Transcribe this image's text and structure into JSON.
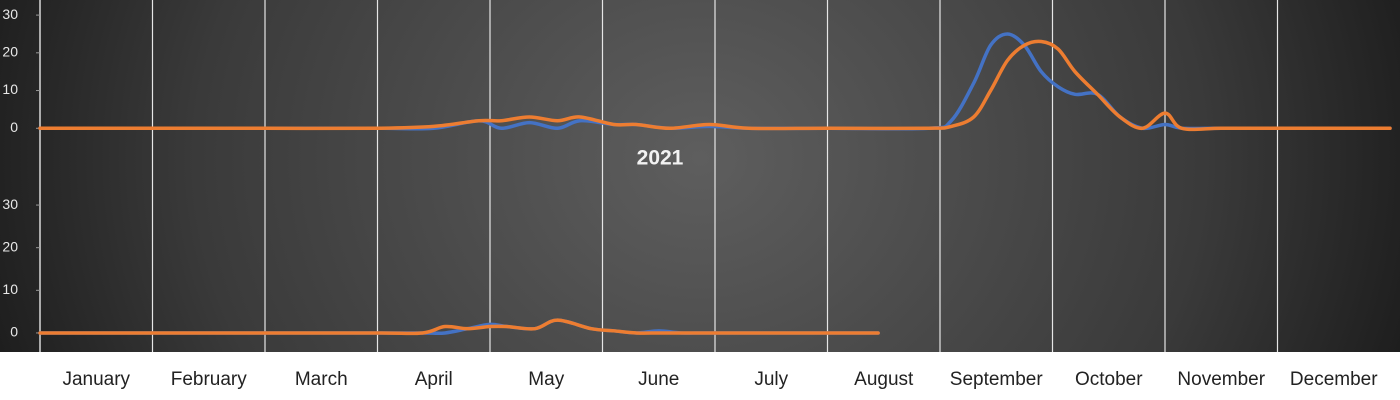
{
  "chart_data": [
    {
      "type": "line",
      "x": [
        0,
        1,
        2,
        3,
        3.5,
        3.9,
        4.1,
        4.35,
        4.6,
        4.8,
        5.1,
        5.3,
        5.6,
        5.95,
        6.3,
        7,
        7.9,
        8.1,
        8.3,
        8.45,
        8.6,
        8.75,
        8.9,
        9.05,
        9.2,
        9.4,
        9.6,
        9.8,
        10,
        10.15,
        10.5,
        11,
        12
      ],
      "xlim": [
        0,
        12
      ],
      "ylim": [
        -10,
        34
      ],
      "yticks": [
        0,
        10,
        20,
        30
      ],
      "grid": true,
      "series": [
        {
          "color": "#4472c4",
          "values": [
            0,
            0,
            0,
            0,
            0,
            2,
            0,
            1.5,
            0,
            2,
            1,
            1,
            0,
            0.5,
            0,
            0,
            0,
            2,
            12,
            22,
            25,
            22,
            15,
            11,
            9,
            9,
            3,
            0,
            1,
            0,
            0,
            0,
            0
          ]
        },
        {
          "color": "#ed7d31",
          "values": [
            0,
            0,
            0,
            0,
            0.5,
            2,
            2,
            3,
            2,
            3,
            1,
            1,
            0,
            1,
            0,
            0,
            0,
            0.5,
            3,
            10,
            18,
            22,
            23,
            21,
            15,
            9,
            3,
            0,
            4,
            0,
            0,
            0,
            0
          ]
        }
      ]
    },
    {
      "type": "line",
      "title": "2021",
      "x": [
        0,
        1,
        2,
        3,
        3.4,
        3.6,
        3.8,
        4.0,
        4.15,
        4.4,
        4.6,
        4.9,
        5.1,
        5.3,
        5.5,
        5.7,
        6,
        7,
        7.45
      ],
      "xlim": [
        0,
        12
      ],
      "xticks": [
        {
          "value": 0.5,
          "label": "January"
        },
        {
          "value": 1.5,
          "label": "February"
        },
        {
          "value": 2.5,
          "label": "March"
        },
        {
          "value": 3.5,
          "label": "April"
        },
        {
          "value": 4.5,
          "label": "May"
        },
        {
          "value": 5.5,
          "label": "June"
        },
        {
          "value": 6.5,
          "label": "July"
        },
        {
          "value": 7.5,
          "label": "August"
        },
        {
          "value": 8.5,
          "label": "September"
        },
        {
          "value": 9.5,
          "label": "October"
        },
        {
          "value": 10.5,
          "label": "November"
        },
        {
          "value": 11.5,
          "label": "December"
        }
      ],
      "ylim": [
        -4,
        34
      ],
      "yticks": [
        0,
        10,
        20,
        30
      ],
      "grid": true,
      "series": [
        {
          "color": "#4472c4",
          "values": [
            0,
            0,
            0,
            0,
            0,
            0,
            1,
            2,
            1.5,
            1,
            3,
            1,
            0.5,
            0,
            0.5,
            0,
            0,
            0,
            0
          ]
        },
        {
          "color": "#ed7d31",
          "values": [
            0,
            0,
            0,
            0,
            0,
            1.5,
            1,
            1.5,
            1.5,
            1,
            3,
            1,
            0.5,
            0,
            0,
            0,
            0,
            0,
            0
          ]
        }
      ]
    }
  ]
}
